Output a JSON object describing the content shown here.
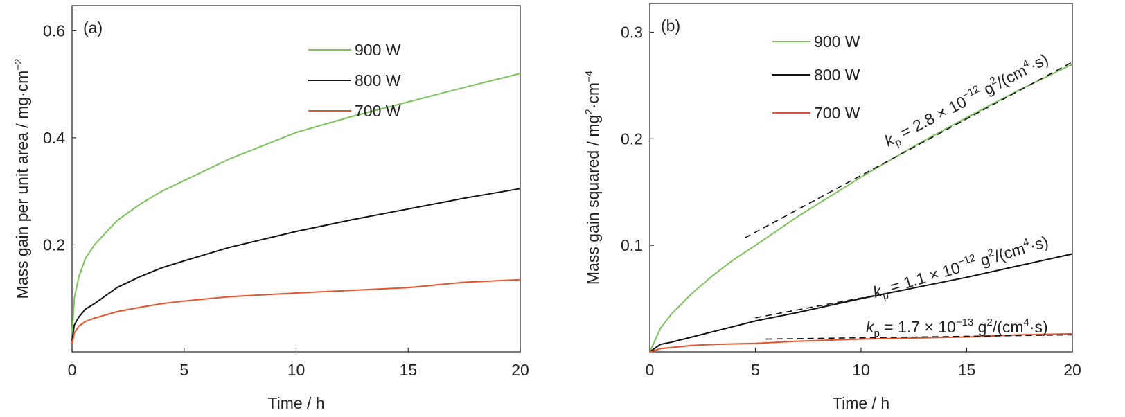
{
  "colors": {
    "900 W": "#7cc25a",
    "800 W": "#111111",
    "700 W": "#e8532b",
    "fit": "#111111"
  },
  "chart_data": [
    {
      "type": "line",
      "panel_label": "(a)",
      "xlabel": "Time / h",
      "ylabel": {
        "main": "Mass gain per unit area / mg·cm",
        "sup": "−2"
      },
      "xlim": [
        0,
        20
      ],
      "ylim": [
        0,
        0.647
      ],
      "xticks": [
        0,
        5,
        10,
        15,
        20
      ],
      "xtick_labels": [
        "0",
        "5",
        "10",
        "15",
        "20"
      ],
      "yticks": [
        0.2,
        0.4,
        0.6
      ],
      "ytick_labels": [
        "0.2",
        "0.4",
        "0.6"
      ],
      "legend": [
        "900 W",
        "800 W",
        "700 W"
      ],
      "legend_position": "top-right",
      "series": [
        {
          "name": "900 W",
          "x": [
            0,
            0.1,
            0.3,
            0.6,
            1,
            2,
            3,
            4,
            5,
            7,
            10,
            12.5,
            15,
            17.5,
            20
          ],
          "y": [
            0.03,
            0.1,
            0.14,
            0.175,
            0.2,
            0.245,
            0.275,
            0.3,
            0.32,
            0.36,
            0.41,
            0.44,
            0.467,
            0.494,
            0.52
          ]
        },
        {
          "name": "800 W",
          "x": [
            0,
            0.1,
            0.3,
            0.6,
            1,
            2,
            3,
            4,
            5,
            7,
            10,
            12.5,
            15,
            17.5,
            20
          ],
          "y": [
            0.02,
            0.05,
            0.065,
            0.08,
            0.09,
            0.12,
            0.14,
            0.157,
            0.17,
            0.195,
            0.225,
            0.247,
            0.267,
            0.287,
            0.305
          ]
        },
        {
          "name": "700 W",
          "x": [
            0,
            0.1,
            0.3,
            0.6,
            1,
            2,
            3,
            4,
            5,
            7,
            10,
            12.5,
            15,
            17.5,
            20
          ],
          "y": [
            0.015,
            0.035,
            0.048,
            0.057,
            0.063,
            0.075,
            0.083,
            0.09,
            0.095,
            0.103,
            0.11,
            0.115,
            0.12,
            0.13,
            0.135
          ]
        }
      ]
    },
    {
      "type": "line",
      "panel_label": "(b)",
      "xlabel": "Time / h",
      "ylabel": {
        "main": "Mass gain squared / mg",
        "sup": "2",
        "mid": "·cm",
        "sup2": "−4"
      },
      "xlim": [
        0,
        20
      ],
      "ylim": [
        0,
        0.327
      ],
      "xticks": [
        0,
        5,
        10,
        15,
        20
      ],
      "xtick_labels": [
        "0",
        "5",
        "10",
        "15",
        "20"
      ],
      "yticks": [
        0.1,
        0.2,
        0.3
      ],
      "ytick_labels": [
        "0.1",
        "0.2",
        "0.3"
      ],
      "legend": [
        "900 W",
        "800 W",
        "700 W"
      ],
      "legend_position": "top-center",
      "series": [
        {
          "name": "900 W",
          "x": [
            0,
            0.5,
            1,
            2,
            3,
            4,
            5,
            7,
            10,
            12.5,
            15,
            17.5,
            20
          ],
          "y": [
            0,
            0.022,
            0.035,
            0.055,
            0.072,
            0.087,
            0.1,
            0.127,
            0.164,
            0.193,
            0.22,
            0.246,
            0.27
          ]
        },
        {
          "name": "800 W",
          "x": [
            0,
            0.5,
            1,
            2,
            3,
            5,
            7,
            10,
            12.5,
            15,
            17.5,
            20
          ],
          "y": [
            0,
            0.007,
            0.009,
            0.014,
            0.019,
            0.029,
            0.037,
            0.05,
            0.06,
            0.07,
            0.081,
            0.092
          ]
        },
        {
          "name": "700 W",
          "x": [
            0,
            0.5,
            1,
            2,
            3,
            5,
            7,
            10,
            12.5,
            15,
            17.5,
            20
          ],
          "y": [
            0,
            0.003,
            0.004,
            0.006,
            0.007,
            0.008,
            0.01,
            0.012,
            0.013,
            0.014,
            0.016,
            0.017
          ]
        }
      ],
      "fits": [
        {
          "name": "900 W fit",
          "x": [
            4.5,
            20
          ],
          "y": [
            0.107,
            0.272
          ]
        },
        {
          "name": "800 W fit",
          "x": [
            5,
            12
          ],
          "y": [
            0.032,
            0.058
          ]
        },
        {
          "name": "700 W fit",
          "x": [
            5.5,
            20
          ],
          "y": [
            0.012,
            0.016
          ]
        }
      ],
      "annotations": [
        {
          "series": "900 W",
          "k": "k",
          "sub": "p",
          "eq": " = 2.8 × 10",
          "exp": "−12",
          "u1": " g",
          "uexp": "2",
          "u2": "/(cm",
          "uexp2": "4",
          "u3": "·s)"
        },
        {
          "series": "800 W",
          "k": "k",
          "sub": "p",
          "eq": " = 1.1 × 10",
          "exp": "−12",
          "u1": " g",
          "uexp": "2",
          "u2": "/(cm",
          "uexp2": "4",
          "u3": "·s)"
        },
        {
          "series": "700 W",
          "k": "k",
          "sub": "p",
          "eq": " = 1.7 × 10",
          "exp": "−13",
          "u1": " g",
          "uexp": "2",
          "u2": "/(cm",
          "uexp2": "4",
          "u3": "·s)"
        }
      ]
    }
  ]
}
